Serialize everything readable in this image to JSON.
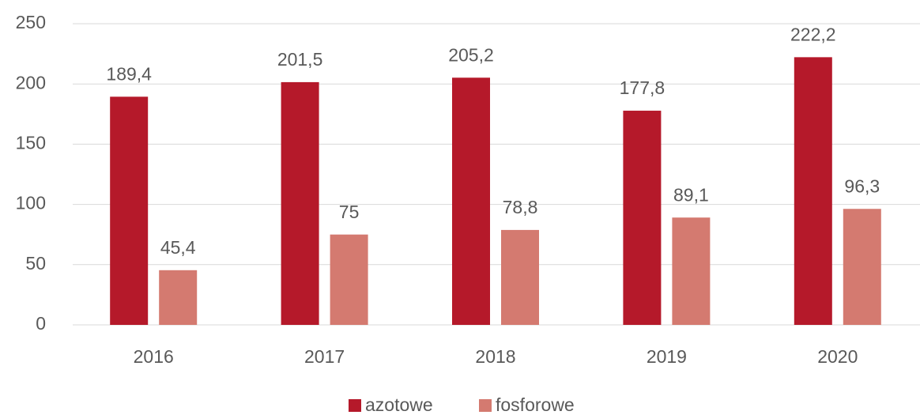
{
  "chart_data": {
    "type": "bar",
    "categories": [
      "2016",
      "2017",
      "2018",
      "2019",
      "2020"
    ],
    "series": [
      {
        "name": "azotowe",
        "color": "#b5192a",
        "values": [
          189.4,
          201.5,
          205.2,
          177.8,
          222.2
        ],
        "value_labels": [
          "189,4",
          "201,5",
          "205,2",
          "177,8",
          "222,2"
        ]
      },
      {
        "name": "fosforowe",
        "color": "#d47a70",
        "values": [
          45.4,
          75,
          78.8,
          89.1,
          96.3
        ],
        "value_labels": [
          "45,4",
          "75",
          "78,8",
          "89,1",
          "96,3"
        ]
      }
    ],
    "ylim": [
      0,
      250
    ],
    "yticks": [
      0,
      50,
      100,
      150,
      200,
      250
    ],
    "grid": true,
    "legend": "bottom"
  }
}
